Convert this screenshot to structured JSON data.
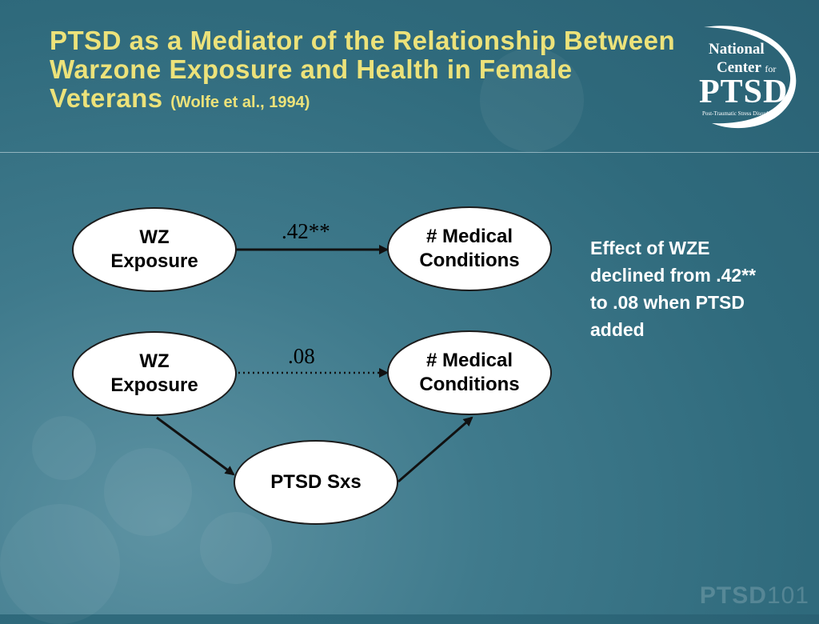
{
  "title": {
    "main": "PTSD as a Mediator of the Relationship Between Warzone Exposure and Health in Female Veterans",
    "citation": "(Wolfe et al., 1994)"
  },
  "logo": {
    "line1": "National",
    "line2": "Center",
    "line2_small": "for",
    "line3": "PTSD",
    "line4": "Post-Traumatic Stress Disorder"
  },
  "diagram": {
    "model1": {
      "source": "WZ Exposure",
      "target": "# Medical Conditions",
      "coefficient": ".42**"
    },
    "model2": {
      "source": "WZ Exposure",
      "target": "# Medical Conditions",
      "mediator": "PTSD Sxs",
      "coefficient": ".08"
    }
  },
  "note": "Effect of WZE declined from .42** to .08 when PTSD added",
  "footer": {
    "brand": "PTSD",
    "number": "101"
  }
}
